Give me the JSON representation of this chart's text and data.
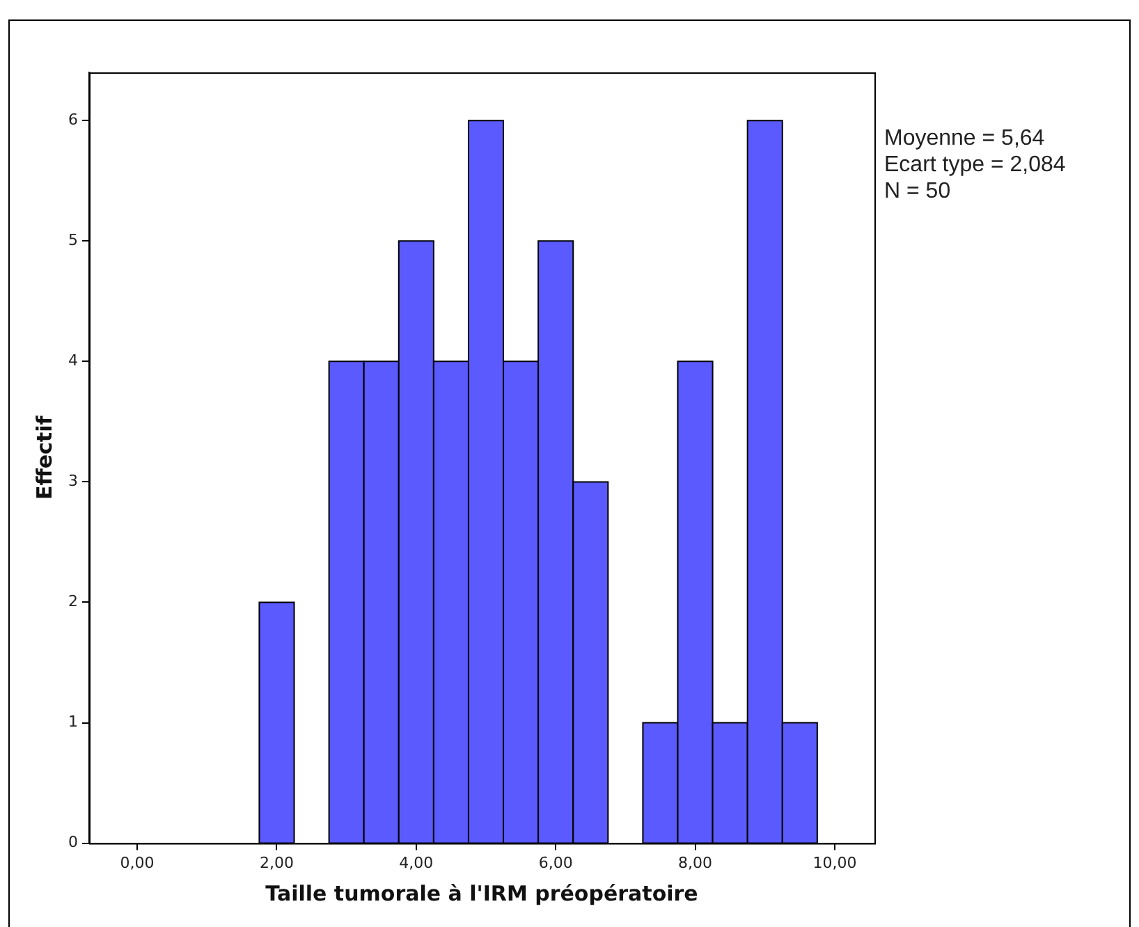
{
  "chart_data": {
    "type": "histogram",
    "xlabel": "Taille tumorale à l'IRM préopératoire",
    "ylabel": "Effectif",
    "bins": [
      1.75,
      2.25,
      2.75,
      3.25,
      3.75,
      4.25,
      4.75,
      5.25,
      5.75,
      6.25,
      6.75,
      7.25,
      7.75,
      8.25,
      8.75,
      9.25,
      9.75
    ],
    "values": [
      2,
      0,
      4,
      4,
      5,
      4,
      6,
      4,
      5,
      3,
      0,
      1,
      4,
      1,
      6,
      1
    ],
    "color": "#5a5aff",
    "xlim": [
      -0.69,
      10.57
    ],
    "xticks": [
      {
        "value": 0,
        "label": "0,00"
      },
      {
        "value": 2,
        "label": "2,00"
      },
      {
        "value": 4,
        "label": "4,00"
      },
      {
        "value": 6,
        "label": "6,00"
      },
      {
        "value": 8,
        "label": "8,00"
      },
      {
        "value": 10,
        "label": "10,00"
      }
    ],
    "ylim": [
      0,
      6.4
    ],
    "yticks": [
      0,
      1,
      2,
      3,
      4,
      5,
      6
    ],
    "grid": false,
    "legend": false,
    "annotations": [
      "Moyenne = 5,64",
      "Ecart type = 2,084",
      "N = 50"
    ]
  }
}
